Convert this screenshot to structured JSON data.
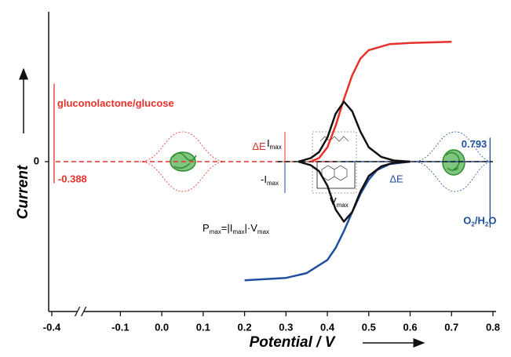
{
  "chart_data": {
    "type": "line",
    "ylabel": "Current",
    "xlabel": "Potential / V",
    "xlim": [
      -0.4,
      0.8
    ],
    "xbreak": [
      -0.35,
      -0.15
    ],
    "xticks": [
      -0.4,
      -0.1,
      {
        "value": 0,
        "label": "0.0"
      },
      0.1,
      0.2,
      0.3,
      0.4,
      0.5,
      0.6,
      0.7,
      0.8
    ],
    "ylim": [
      -1.25,
      1.25
    ],
    "yticks": [
      0
    ],
    "series": [
      {
        "color": "#e8302a",
        "dash": true,
        "x": [
          -0.38,
          0.42
        ],
        "values": [
          0,
          0
        ]
      },
      {
        "color": "#1f4fa0",
        "dash": true,
        "x": [
          0.44,
          0.79
        ],
        "values": [
          0,
          0
        ]
      },
      {
        "color": "#111111",
        "dash": true,
        "x": [
          0.28,
          0.8
        ],
        "values": [
          0,
          0
        ]
      },
      {
        "color": "#e8302a",
        "x": [
          0.36,
          0.38,
          0.4,
          0.42,
          0.44,
          0.46,
          0.48,
          0.5,
          0.55,
          0.6,
          0.7
        ],
        "values": [
          0,
          0.03,
          0.12,
          0.3,
          0.52,
          0.72,
          0.86,
          0.93,
          0.98,
          0.99,
          1.0
        ]
      },
      {
        "color": "#1f4fa0",
        "x": [
          0.2,
          0.3,
          0.35,
          0.4,
          0.42,
          0.44,
          0.46,
          0.48,
          0.5,
          0.52,
          0.55,
          0.6
        ],
        "values": [
          -0.99,
          -0.97,
          -0.93,
          -0.82,
          -0.72,
          -0.58,
          -0.42,
          -0.27,
          -0.15,
          -0.07,
          -0.02,
          0
        ]
      },
      {
        "color": "#111111",
        "x": [
          0.33,
          0.36,
          0.38,
          0.4,
          0.42,
          0.44,
          0.46,
          0.48,
          0.5,
          0.53,
          0.56,
          0.6
        ],
        "values": [
          0,
          0.03,
          0.08,
          0.2,
          0.4,
          0.5,
          0.42,
          0.25,
          0.12,
          0.04,
          0.01,
          0
        ]
      },
      {
        "color": "#111111",
        "x": [
          0.33,
          0.36,
          0.38,
          0.4,
          0.42,
          0.44,
          0.46,
          0.48,
          0.5,
          0.53,
          0.56,
          0.6
        ],
        "values": [
          0,
          -0.03,
          -0.08,
          -0.2,
          -0.4,
          -0.5,
          -0.42,
          -0.25,
          -0.12,
          -0.04,
          -0.01,
          0
        ]
      }
    ],
    "redox_couples": [
      {
        "label": "gluconolactone/glucose",
        "value": -0.388,
        "color": "#e8302a"
      },
      {
        "label_parts": [
          {
            "text": "O"
          },
          {
            "text": "2",
            "sub": true
          },
          {
            "text": "/H"
          },
          {
            "text": "2",
            "sub": true
          },
          {
            "text": "O"
          }
        ],
        "value": 0.793,
        "color": "#1f4fa0"
      }
    ],
    "delta_e": [
      {
        "text": "ΔE",
        "color": "#e8302a"
      },
      {
        "text": "ΔE",
        "color": "#1f4fa0"
      }
    ],
    "imax": [
      {
        "text": "I"
      },
      {
        "text": "max",
        "sub": true
      }
    ],
    "neg_imax": [
      {
        "text": "-I"
      },
      {
        "text": "max",
        "sub": true
      }
    ],
    "vmax": [
      {
        "text": "V"
      },
      {
        "text": "max",
        "sub": true
      }
    ],
    "pmax": [
      {
        "text": "P"
      },
      {
        "text": "max",
        "sub": true
      },
      {
        "text": "=|I"
      },
      {
        "text": "max",
        "sub": true
      },
      {
        "text": "|·V"
      },
      {
        "text": "max",
        "sub": true
      }
    ]
  }
}
